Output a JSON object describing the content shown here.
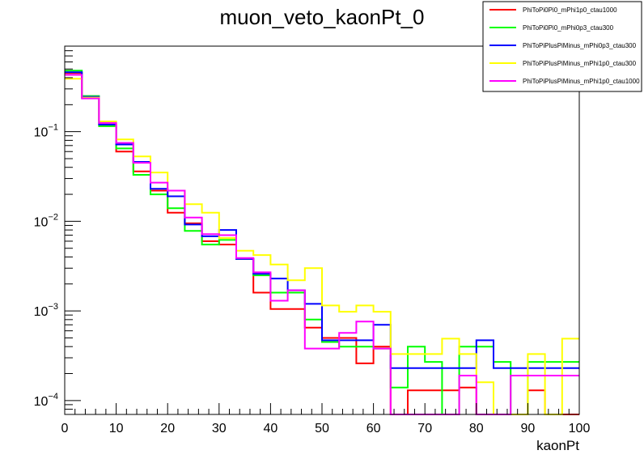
{
  "chart_data": {
    "type": "line",
    "drawstyle": "step-histogram",
    "title": "muon_veto_kaonPt_0",
    "xlabel": "kaonPt",
    "ylabel": "",
    "xlim": [
      0,
      100
    ],
    "ylim": [
      7e-05,
      0.9
    ],
    "yscale": "log",
    "x_ticks": [
      0,
      10,
      20,
      30,
      40,
      50,
      60,
      70,
      80,
      90,
      100
    ],
    "x_tick_labels": [
      "0",
      "10",
      "20",
      "30",
      "40",
      "50",
      "60",
      "70",
      "80",
      "90",
      "100"
    ],
    "y_ticks": [
      {
        "value": 0.1,
        "base": "10",
        "exp": "−1"
      },
      {
        "value": 0.01,
        "base": "10",
        "exp": "−2"
      },
      {
        "value": 0.001,
        "base": "10",
        "exp": "−3"
      },
      {
        "value": 0.0001,
        "base": "10",
        "exp": "−4"
      }
    ],
    "grid": false,
    "legend_position": "top-right",
    "bin_edges": [
      0,
      3.33,
      6.67,
      10,
      13.33,
      16.67,
      20,
      23.33,
      26.67,
      30,
      33.33,
      36.67,
      40,
      43.33,
      46.67,
      50,
      53.33,
      56.67,
      60,
      63.33,
      66.67,
      70,
      73.33,
      76.67,
      80,
      83.33,
      86.67,
      90,
      93.33,
      96.67,
      100
    ],
    "series": [
      {
        "name": "PhiToPi0Pi0_mPhi1p0_ctau1000",
        "color": "#ff0000",
        "values": [
          0.45,
          0.24,
          0.12,
          0.06,
          0.036,
          0.022,
          0.0125,
          0.0095,
          0.006,
          0.0055,
          0.0038,
          0.0016,
          0.00105,
          0.00105,
          0.00065,
          0.0005,
          0.0005,
          0.00026,
          0.0004,
          4.5e-05,
          0.00013,
          0.00013,
          0.00013,
          0.00014,
          4.5e-05,
          4.5e-05,
          4.5e-05,
          0.00013,
          4.5e-05,
          4.5e-05
        ]
      },
      {
        "name": "PhiToPi0Pi0_mPhi0p3_ctau300",
        "color": "#00ff00",
        "values": [
          0.48,
          0.25,
          0.115,
          0.065,
          0.033,
          0.02,
          0.014,
          0.0078,
          0.0055,
          0.0062,
          0.0038,
          0.0025,
          0.0016,
          0.0016,
          0.0008,
          0.00045,
          0.0004,
          0.0004,
          0.00038,
          0.00014,
          0.0004,
          0.00027,
          4.5e-05,
          0.0004,
          0.0004,
          0.00027,
          4.5e-05,
          0.00027,
          0.00027,
          0.00027
        ]
      },
      {
        "name": "PhiToPiPlusPiMinus_mPhi0p3_ctau300",
        "color": "#0000ff",
        "values": [
          0.46,
          0.245,
          0.12,
          0.072,
          0.046,
          0.023,
          0.019,
          0.0092,
          0.0068,
          0.008,
          0.0038,
          0.0026,
          0.0023,
          0.0017,
          0.0012,
          0.00047,
          0.00047,
          0.00047,
          0.0007,
          0.00023,
          0.00023,
          0.00023,
          0.00023,
          0.00023,
          0.00047,
          0.00023,
          0.00023,
          0.00023,
          0.00023,
          0.00023
        ]
      },
      {
        "name": "PhiToPiPlusPiMinus_mPhi1p0_ctau300",
        "color": "#ffff00",
        "values": [
          0.39,
          0.24,
          0.13,
          0.082,
          0.053,
          0.035,
          0.022,
          0.0155,
          0.0125,
          0.0065,
          0.0047,
          0.0042,
          0.0033,
          0.0022,
          0.003,
          0.00115,
          0.00098,
          0.00115,
          0.00098,
          0.00033,
          0.00033,
          0.00033,
          0.00049,
          0.00033,
          0.00016,
          4.5e-05,
          4.5e-05,
          0.00033,
          4.5e-05,
          0.00049
        ]
      },
      {
        "name": "PhiToPiPlusPiMinus_mPhi1p0_ctau1000",
        "color": "#ff00ff",
        "values": [
          0.43,
          0.235,
          0.125,
          0.075,
          0.045,
          0.027,
          0.022,
          0.011,
          0.0072,
          0.007,
          0.0039,
          0.0027,
          0.0013,
          0.0017,
          0.00038,
          0.00038,
          0.00057,
          0.00076,
          0.00038,
          4.5e-05,
          4.5e-05,
          4.5e-05,
          4.5e-05,
          0.00019,
          4.5e-05,
          4.5e-05,
          0.00019,
          0.00019,
          0.00019,
          0.00019
        ]
      }
    ]
  }
}
